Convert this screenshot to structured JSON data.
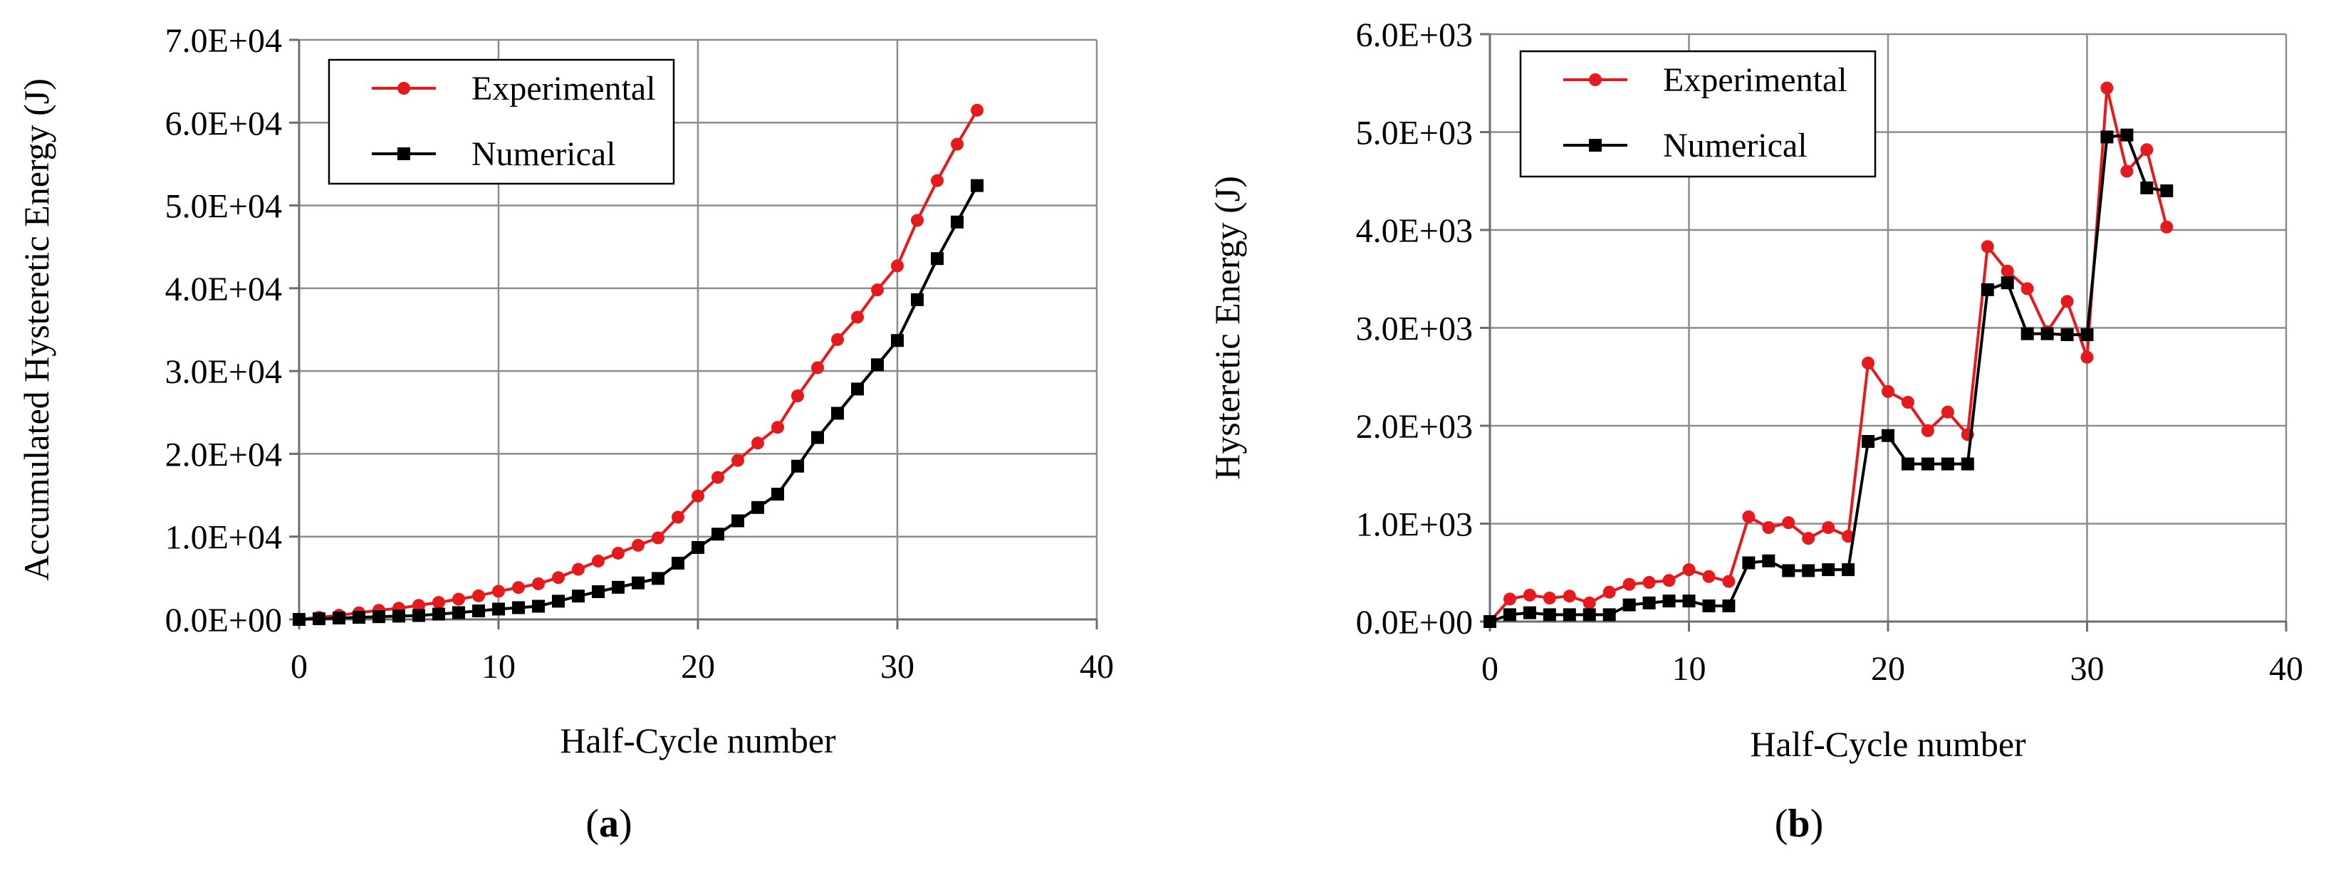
{
  "chart_data": [
    {
      "type": "line",
      "panel_label": "a",
      "xlabel": "Half-Cycle number",
      "ylabel": "Accumulated Hysteretic Energy (J)",
      "xlim": [
        0,
        40
      ],
      "ylim": [
        0,
        70000
      ],
      "x_ticks": [
        0,
        10,
        20,
        30,
        40
      ],
      "x_tick_labels": [
        "0",
        "10",
        "20",
        "30",
        "40"
      ],
      "y_ticks": [
        0,
        10000,
        20000,
        30000,
        40000,
        50000,
        60000,
        70000
      ],
      "y_tick_labels": [
        "0.0E+00",
        "1.0E+04",
        "2.0E+04",
        "3.0E+04",
        "4.0E+04",
        "5.0E+04",
        "6.0E+04",
        "7.0E+04"
      ],
      "grid": true,
      "legend_position": "top-left",
      "x": [
        0,
        1,
        2,
        3,
        4,
        5,
        6,
        7,
        8,
        9,
        10,
        11,
        12,
        13,
        14,
        15,
        16,
        17,
        18,
        19,
        20,
        21,
        22,
        23,
        24,
        25,
        26,
        27,
        28,
        29,
        30,
        31,
        32,
        33,
        34
      ],
      "series": [
        {
          "name": "Experimental",
          "color": "#e41a1c",
          "marker": "circle",
          "values": [
            0,
            250,
            500,
            800,
            1100,
            1350,
            1700,
            2050,
            2450,
            2850,
            3400,
            3850,
            4300,
            5050,
            6050,
            7050,
            8000,
            8950,
            9850,
            12350,
            14900,
            17150,
            19200,
            21300,
            23200,
            27000,
            30400,
            33800,
            36500,
            39800,
            42700,
            48200,
            53000,
            57400,
            61500
          ]
        },
        {
          "name": "Numerical",
          "color": "#000000",
          "marker": "square",
          "values": [
            0,
            80,
            170,
            250,
            330,
            400,
            470,
            640,
            820,
            1030,
            1250,
            1420,
            1590,
            2200,
            2820,
            3350,
            3880,
            4410,
            4950,
            6790,
            8690,
            10300,
            11910,
            13520,
            15130,
            18510,
            21970,
            24900,
            27830,
            30760,
            33690,
            38620,
            43580,
            48000,
            52400
          ]
        }
      ]
    },
    {
      "type": "line",
      "panel_label": "b",
      "xlabel": "Half-Cycle number",
      "ylabel": "Hysteretic Energy (J)",
      "xlim": [
        0,
        40
      ],
      "ylim": [
        0,
        6000
      ],
      "x_ticks": [
        0,
        10,
        20,
        30,
        40
      ],
      "x_tick_labels": [
        "0",
        "10",
        "20",
        "30",
        "40"
      ],
      "y_ticks": [
        0,
        1000,
        2000,
        3000,
        4000,
        5000,
        6000
      ],
      "y_tick_labels": [
        "0.0E+00",
        "1.0E+03",
        "2.0E+03",
        "3.0E+03",
        "4.0E+03",
        "5.0E+03",
        "6.0E+03"
      ],
      "grid": true,
      "legend_position": "top-left",
      "x": [
        0,
        1,
        2,
        3,
        4,
        5,
        6,
        7,
        8,
        9,
        10,
        11,
        12,
        13,
        14,
        15,
        16,
        17,
        18,
        19,
        20,
        21,
        22,
        23,
        24,
        25,
        26,
        27,
        28,
        29,
        30,
        31,
        32,
        33,
        34
      ],
      "series": [
        {
          "name": "Experimental",
          "color": "#e41a1c",
          "marker": "circle",
          "values": [
            0,
            230,
            270,
            240,
            260,
            190,
            300,
            380,
            400,
            420,
            530,
            460,
            410,
            1070,
            960,
            1010,
            850,
            960,
            870,
            2640,
            2350,
            2240,
            1950,
            2140,
            1910,
            3830,
            3580,
            3400,
            2960,
            3270,
            2700,
            5450,
            4600,
            4820,
            4030
          ]
        },
        {
          "name": "Numerical",
          "color": "#000000",
          "marker": "square",
          "values": [
            0,
            70,
            90,
            70,
            70,
            70,
            70,
            170,
            190,
            210,
            210,
            160,
            160,
            600,
            620,
            520,
            520,
            530,
            530,
            1840,
            1900,
            1610,
            1610,
            1610,
            1610,
            3390,
            3460,
            2940,
            2940,
            2930,
            2930,
            4950,
            4970,
            4430,
            4400
          ]
        }
      ]
    }
  ]
}
